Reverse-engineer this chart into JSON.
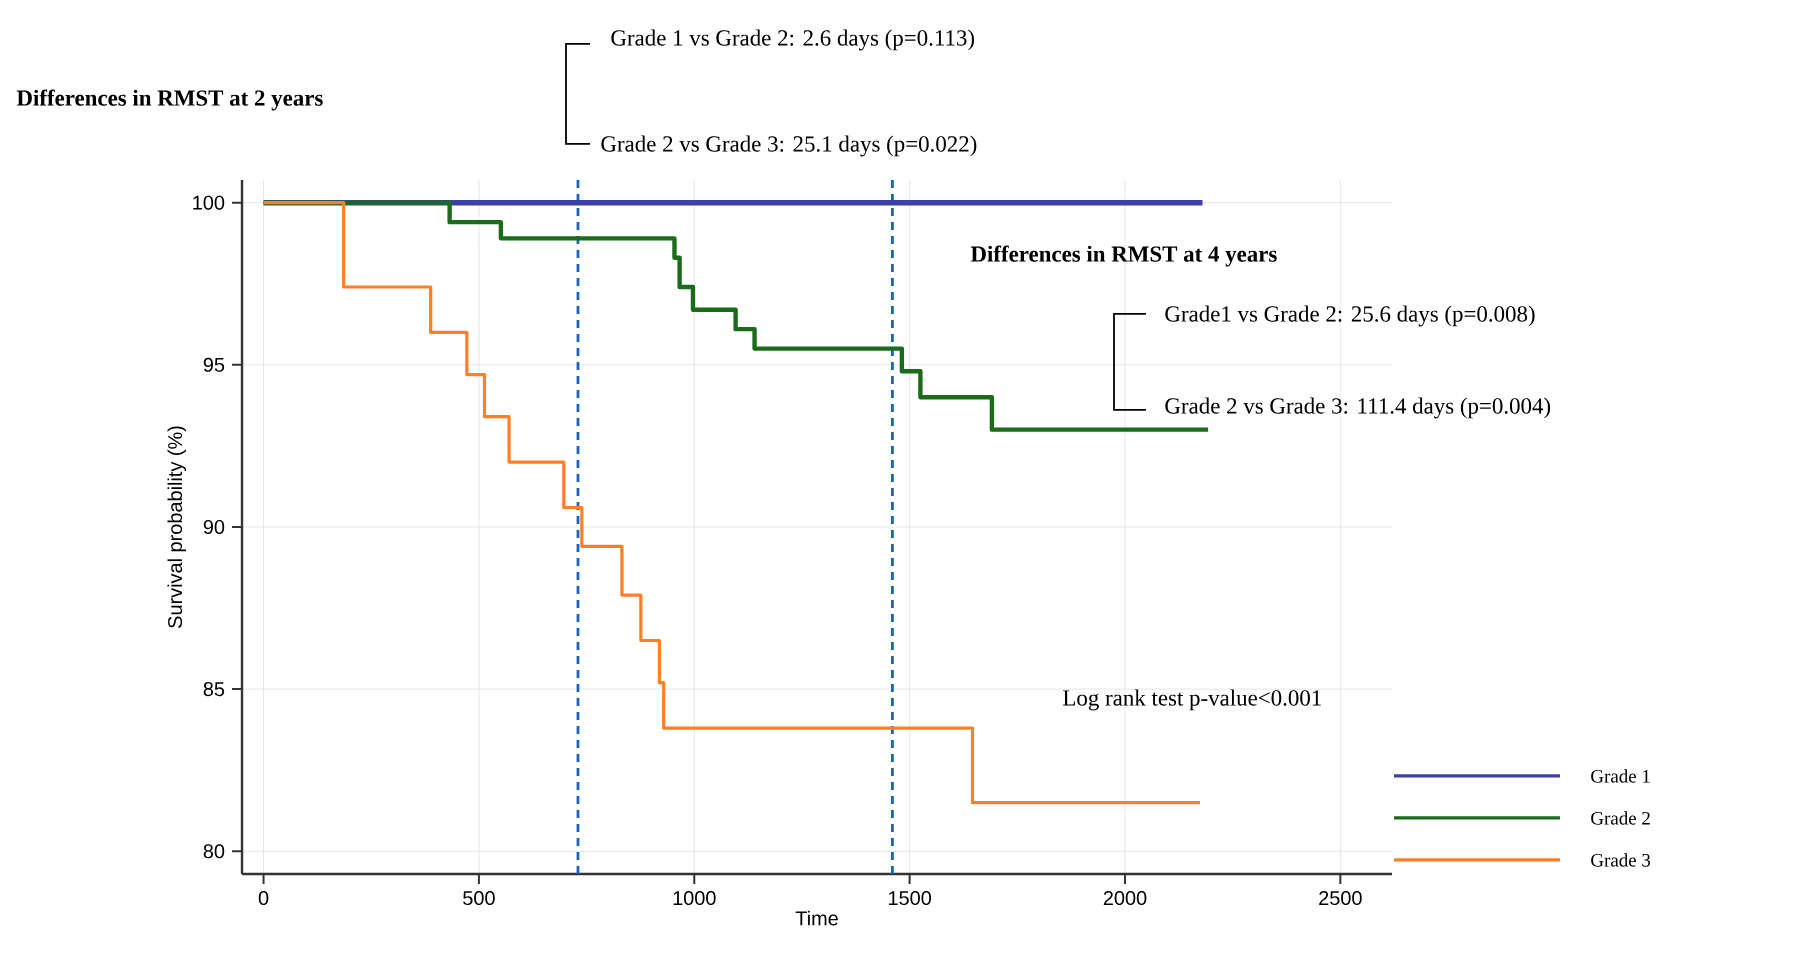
{
  "chart_data": {
    "type": "step",
    "xlabel": "Time",
    "ylabel": "Survival probability (%)",
    "xlim": [
      -50,
      2620
    ],
    "ylim": [
      79.3,
      100.7
    ],
    "xticks": [
      0,
      500,
      1000,
      1500,
      2000,
      2500
    ],
    "yticks": [
      80,
      85,
      90,
      95,
      100
    ],
    "grid": true,
    "legend": "bottom right",
    "series": [
      {
        "name": "Grade 1",
        "color": "#3b3fa8",
        "x": [
          0,
          2180
        ],
        "values": [
          100,
          100
        ]
      },
      {
        "name": "Grade 2",
        "color": "#1a6b1a",
        "x": [
          0,
          432,
          551,
          954,
          966,
          997,
          1096,
          1140,
          1482,
          1525,
          1691,
          2193
        ],
        "values": [
          100,
          99.4,
          98.9,
          98.3,
          97.4,
          96.7,
          96.1,
          95.5,
          94.8,
          94.0,
          93.0,
          93.0
        ]
      },
      {
        "name": "Grade 3",
        "color": "#ff7f27",
        "x": [
          0,
          186,
          388,
          472,
          513,
          570,
          697,
          739,
          832,
          876,
          919,
          929,
          1646,
          2174
        ],
        "values": [
          100,
          97.4,
          96.0,
          94.7,
          93.4,
          92.0,
          90.6,
          89.4,
          87.9,
          86.5,
          85.2,
          83.8,
          81.5,
          81.5
        ]
      }
    ],
    "ref_lines": [
      {
        "axis": "x",
        "value": 730,
        "color": "#1565c0",
        "line_style": "dashed"
      },
      {
        "axis": "x",
        "value": 1460,
        "color": "#1565c0",
        "line_style": "dashed"
      }
    ],
    "annotations": [
      "Differences in RMST at 2 years",
      "Grade 1 vs Grade 2: 2.6 days (p=0.113)",
      "Grade 2 vs Grade 3: 25.1 days (p=0.022)",
      "Differences in RMST at 4 years",
      "Grade1 vs Grade 2: 25.6 days (p=0.008)",
      "Grade 2 vs Grade 3: 111.4 days (p=0.004)",
      "Log rank test p-value<0.001"
    ]
  }
}
